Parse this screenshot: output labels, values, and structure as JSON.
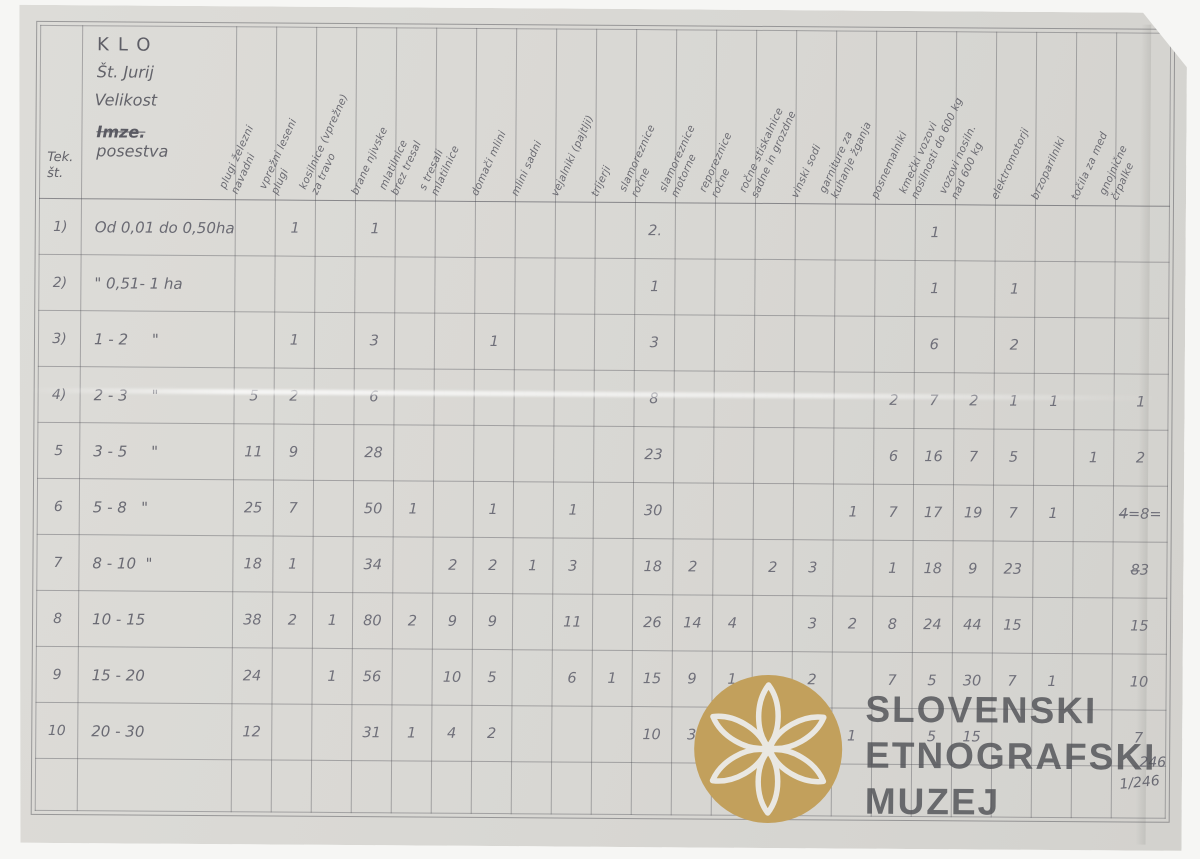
{
  "document": {
    "corner_number": "246",
    "corner_number2": "1/246"
  },
  "watermark": {
    "line1": "SLOVENSKI",
    "line2": "ETNOGRAFSKI",
    "line3": "MUZEJ",
    "circle_color": "#c2a05c",
    "text_color": "#515257"
  },
  "table": {
    "header": {
      "row_no": "Tek.\nšt.",
      "org": "KLO",
      "place": "Št. Jurij",
      "size_word": "Velikost",
      "struck": "Imze.",
      "size_word2": "posestva"
    },
    "columns": [
      "plugi železni\nnavadni",
      "vprežni leseni\nplugi",
      "kosilnice (vprežne)\nza travo",
      "brane njivske",
      "mlatilnice\nbrez tresal",
      "s tresali\nmlatilnice",
      "domači mlini",
      "mlini sadni",
      "vejalniki (pajtlji)",
      "trijerji",
      "slamoreznice\nročne",
      "slamoreznice\nmotorne",
      "reporeznice\nročne",
      "ročne stiskalnice\nsadne in grozdne",
      "vinski sodi",
      "garniture za\nkuhanje žganja",
      "posnemalniki",
      "kmečki vozovi\nnosilnosti do 600 kg",
      "vozovi nosiln.\nnad 600 kg",
      "elektromotorji",
      "brzoparilniki",
      "točila za med",
      "gnojnične\nčrpalke"
    ],
    "rows": [
      {
        "num": "1)",
        "size": "Od 0,01 do 0,50ha",
        "values": [
          "",
          "1",
          "",
          "1",
          "",
          "",
          "",
          "",
          "",
          "",
          "2.",
          "",
          "",
          "",
          "",
          "",
          "",
          "1",
          "",
          "",
          "",
          "",
          ""
        ]
      },
      {
        "num": "2)",
        "size": "\" 0,51- 1 ha",
        "values": [
          "",
          "",
          "",
          "",
          "",
          "",
          "",
          "",
          "",
          "",
          "1",
          "",
          "",
          "",
          "",
          "",
          "",
          "1",
          "",
          "1",
          "",
          "",
          ""
        ]
      },
      {
        "num": "3)",
        "size": "1 - 2     \"",
        "values": [
          "",
          "1",
          "",
          "3",
          "",
          "",
          "1",
          "",
          "",
          "",
          "3",
          "",
          "",
          "",
          "",
          "",
          "",
          "6",
          "",
          "2",
          "",
          "",
          ""
        ]
      },
      {
        "num": "4)",
        "size": "2 - 3     \"",
        "values": [
          "5",
          "2",
          "",
          "6",
          "",
          "",
          "",
          "",
          "",
          "",
          "8",
          "",
          "",
          "",
          "",
          "",
          "2",
          "7",
          "2",
          "1",
          "1",
          "",
          "1"
        ]
      },
      {
        "num": "5",
        "size": "3 - 5     \"",
        "values": [
          "11",
          "9",
          "",
          "28",
          "",
          "",
          "",
          "",
          "",
          "",
          "23",
          "",
          "",
          "",
          "",
          "",
          "6",
          "16",
          "7",
          "5",
          "",
          "1",
          "2"
        ]
      },
      {
        "num": "6",
        "size": "5 - 8   \"",
        "values": [
          "25",
          "7",
          "",
          "50",
          "1",
          "",
          "1",
          "",
          "1",
          "",
          "30",
          "",
          "",
          "",
          "",
          "1",
          "7",
          "17",
          "19",
          "7",
          "1",
          "",
          "4̶=8="
        ]
      },
      {
        "num": "7",
        "size": "8 - 10  \"",
        "values": [
          "18",
          "1",
          "",
          "34",
          "",
          "2",
          "2",
          "1",
          "3",
          "",
          "18",
          "2",
          "",
          "2",
          "3",
          "",
          "1",
          "18",
          "9",
          "23",
          "",
          "",
          "8̶3"
        ]
      },
      {
        "num": "8",
        "size": "10 - 15",
        "values": [
          "38",
          "2",
          "1",
          "80",
          "2",
          "9",
          "9",
          "",
          "11",
          "",
          "26",
          "14",
          "4",
          "",
          "3",
          "2",
          "8",
          "24",
          "44",
          "15",
          "",
          "",
          "15"
        ]
      },
      {
        "num": "9",
        "size": "15 - 20",
        "values": [
          "24",
          "",
          "1",
          "56",
          "",
          "10",
          "5",
          "",
          "6",
          "1",
          "15",
          "9",
          "1",
          "",
          "2",
          "",
          "7",
          "5",
          "30",
          "7",
          "1",
          "",
          "10"
        ]
      },
      {
        "num": "10",
        "size": "20 - 30",
        "values": [
          "12",
          "",
          "",
          "31",
          "1",
          "4",
          "2",
          "",
          "",
          "",
          "10",
          "3",
          "",
          "",
          "",
          "1",
          "",
          "5",
          "15",
          "",
          "",
          "",
          "7"
        ]
      },
      {
        "num": "",
        "size": "",
        "values": [
          "",
          "",
          "",
          "",
          "",
          "",
          "",
          "",
          "",
          "",
          "",
          "",
          "",
          "",
          "",
          "",
          "",
          "",
          "",
          "",
          "",
          "",
          ""
        ]
      }
    ]
  }
}
